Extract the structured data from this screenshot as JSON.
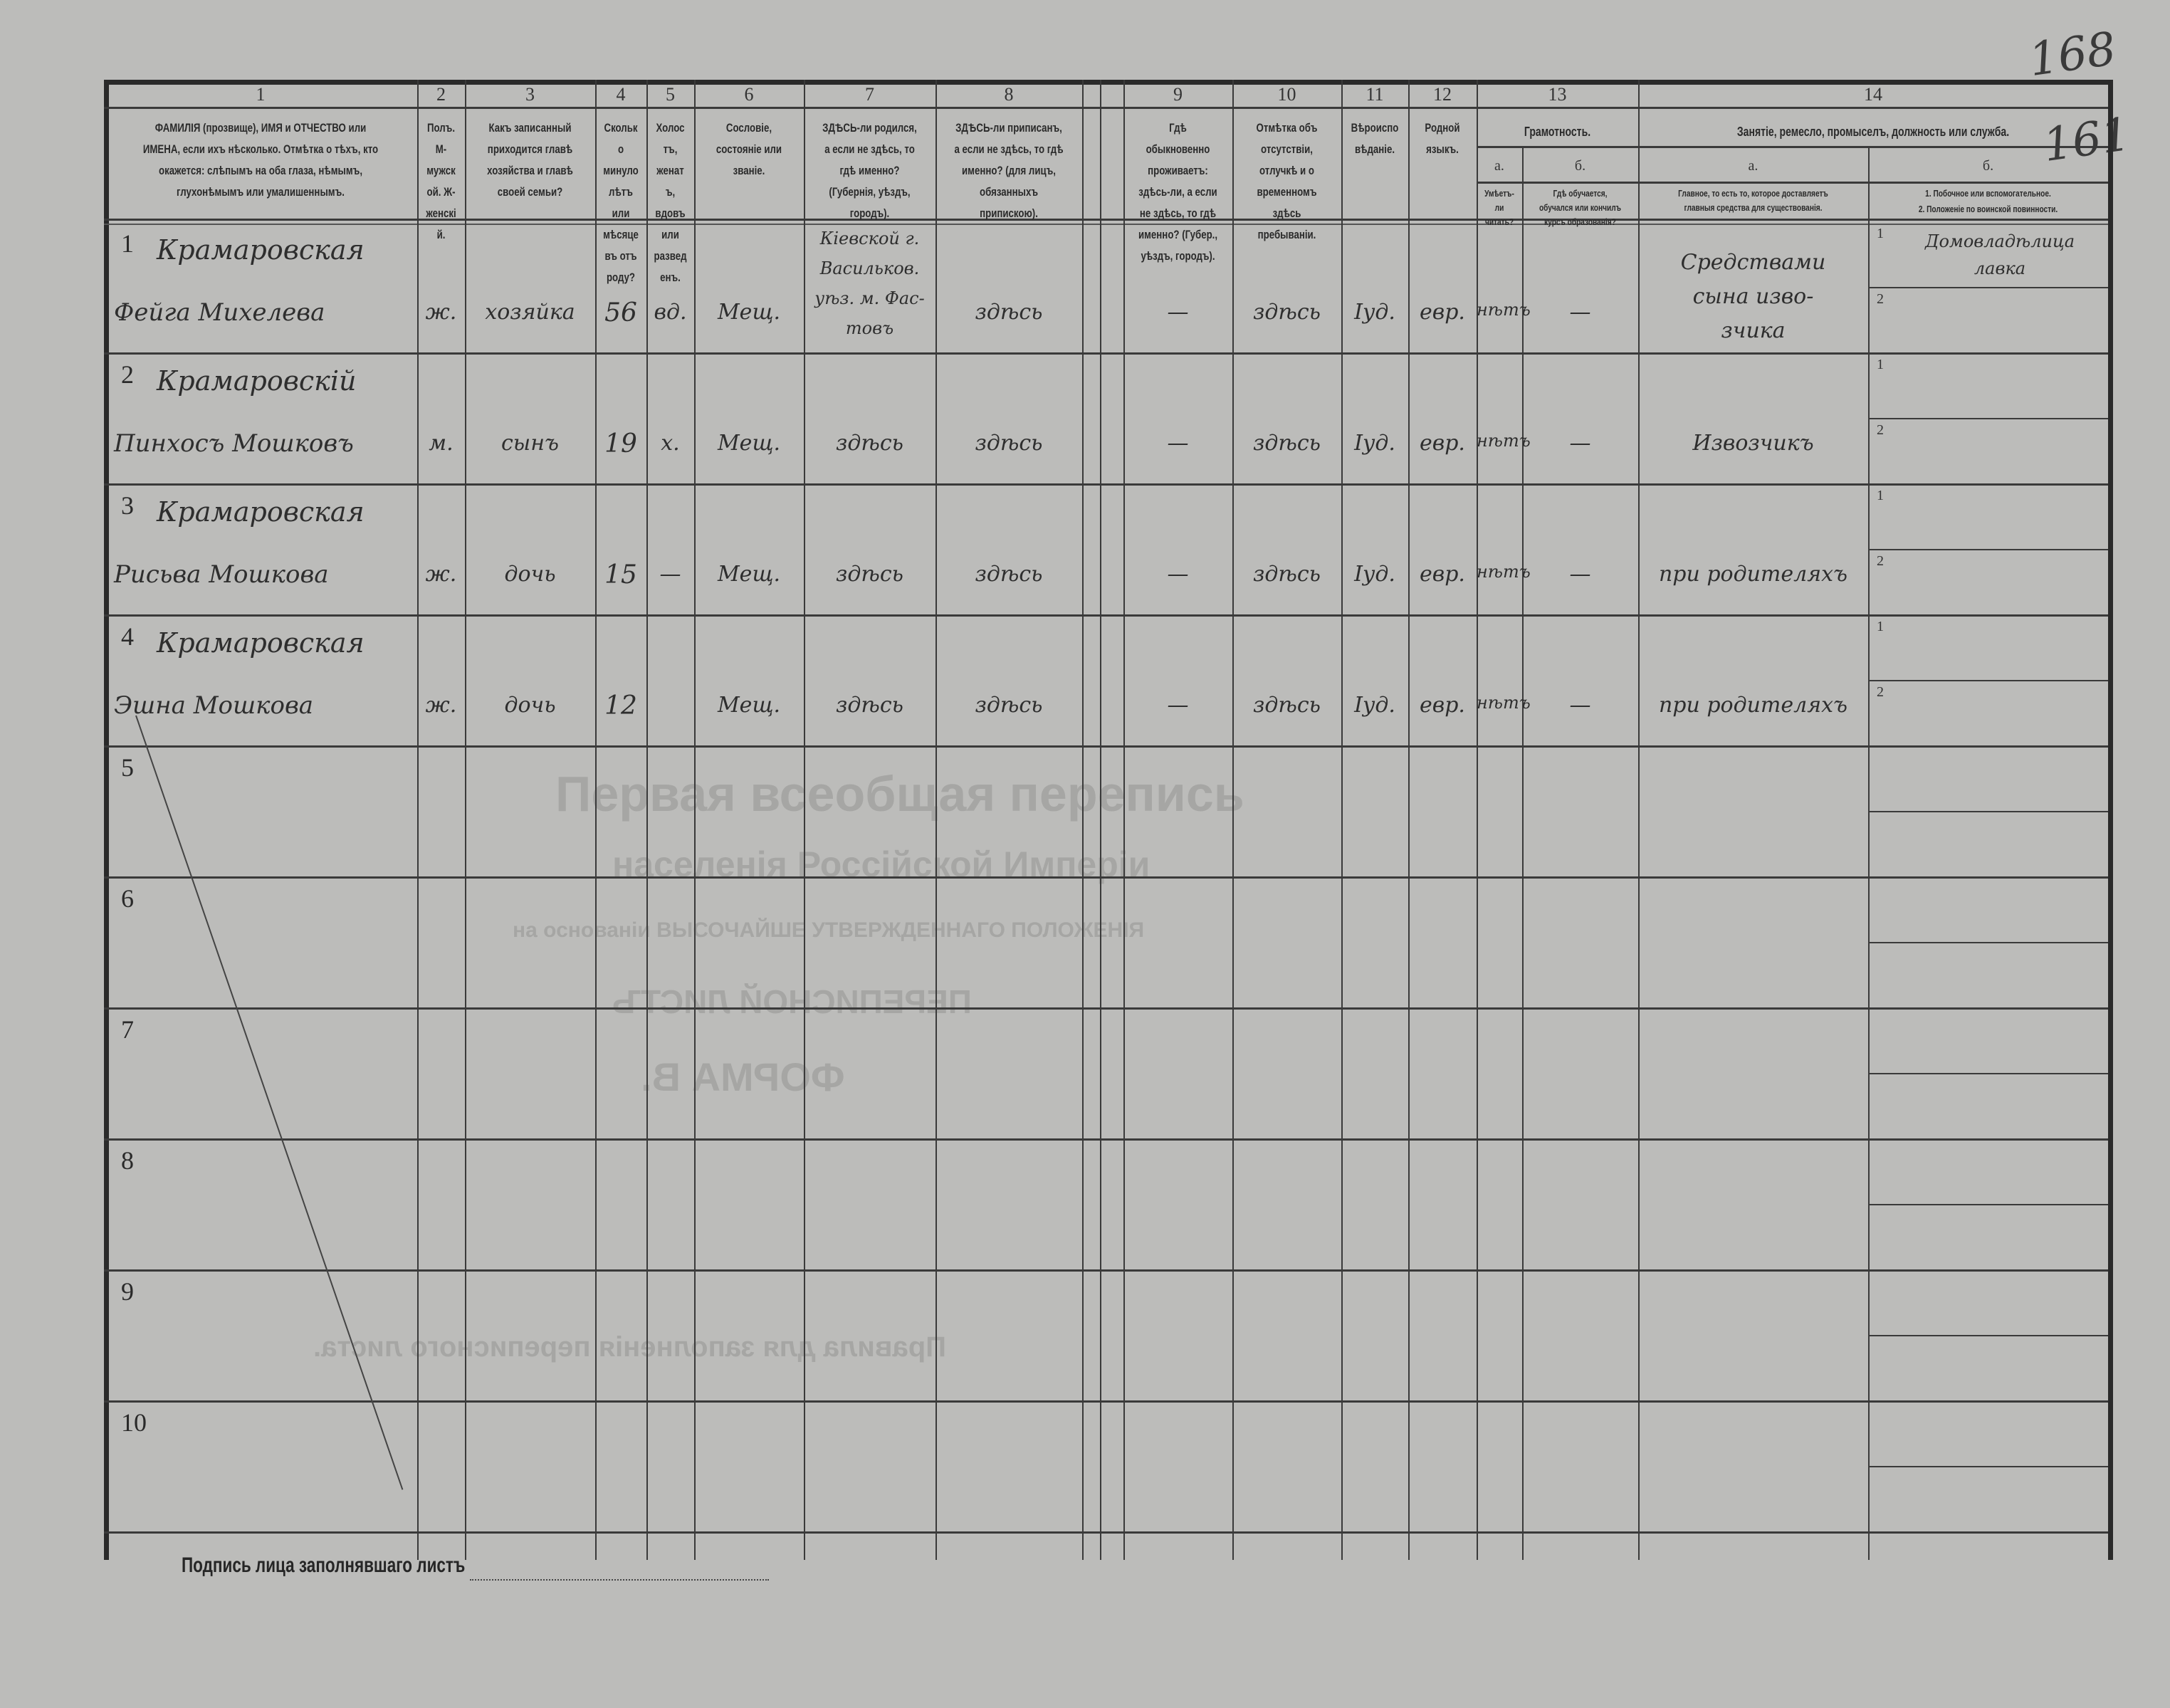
{
  "background_print": {
    "title": "Первая всеобщая перепись",
    "subtitle": "населенія Россійской Имперіи",
    "basis": "на основаніи ВЫСОЧАЙШЕ УТВЕРЖДЕННАГО ПОЛОЖЕНІЯ",
    "form_name": "ПЕРЕПИСНОЙ ЛИСТЪ",
    "form_letter": "ФОРМА В.",
    "rules_title": "Правила для заполненія переписного листа."
  },
  "page_numbers": {
    "top": "168",
    "bottom": "161"
  },
  "columns": [
    {
      "num": "1",
      "header": "ФАМИЛІЯ (прозвище), ИМЯ и ОТЧЕСТВО или ИМЕНА, если ихъ нѣсколько. Отмѣтка о тѣхъ, кто окажется: слѣпымъ на оба глаза, нѣмымъ, глухонѣмымъ или умалишеннымъ."
    },
    {
      "num": "2",
      "header": "Полъ. М-мужской. Ж-женскій."
    },
    {
      "num": "3",
      "header": "Какъ записанный приходится главѣ хозяйства и главѣ своей семьи?"
    },
    {
      "num": "4",
      "header": "Сколько минуло лѣтъ или мѣсяцевъ отъ роду?"
    },
    {
      "num": "5",
      "header": "Холостъ, женатъ, вдовъ или разведенъ."
    },
    {
      "num": "6",
      "header": "Сословіе, состояніе или званіе."
    },
    {
      "num": "7",
      "header": "ЗДѢСЬ-ли родился, а если не здѣсь, то гдѣ именно? (Губернія, уѣздъ, городъ)."
    },
    {
      "num": "8",
      "header": "ЗДѢСЬ-ли приписанъ, а если не здѣсь, то гдѣ именно? (для лицъ, обязанныхъ припискою)."
    },
    {
      "num": "9",
      "header": "Гдѣ обыкновенно проживаетъ: здѣсь-ли, а если не здѣсь, то гдѣ именно? (Губер., уѣздъ, городъ)."
    },
    {
      "num": "10",
      "header": "Отмѣтка объ отсутствіи, отлучкѣ и о временномъ здѣсь пребываніи."
    },
    {
      "num": "11",
      "header": "Вѣроисповѣданіе."
    },
    {
      "num": "12",
      "header": "Родной языкъ."
    },
    {
      "num": "13",
      "header": "Грамотность.",
      "sub": [
        {
          "letter": "а.",
          "header": "Умѣетъ-ли читать?"
        },
        {
          "letter": "б.",
          "header": "Гдѣ обучается, обучался или кончилъ курсъ образованія?"
        }
      ]
    },
    {
      "num": "14",
      "header": "Занятіе, ремесло, промыселъ, должность или служба.",
      "sub": [
        {
          "letter": "а.",
          "header": "Главное, то есть то, которое доставляетъ главныя средства для существованія."
        },
        {
          "letter": "б.",
          "header": "1. Побочное или вспомогательное.",
          "header2": "2. Положеніе по воинской повинности."
        }
      ]
    }
  ],
  "rows": [
    {
      "num": "1",
      "surname": "Крамаровская",
      "given": "Фейга Михелева",
      "sex": "ж.",
      "relation": "хозяйка",
      "age": "56",
      "marital": "вд.",
      "estate": "Мещ.",
      "birthplace": [
        "Кіевской г.",
        "Васильков.",
        "уѣз. м. Фас-",
        "товъ"
      ],
      "registered": "здѣсь",
      "residence": "—",
      "absence": "здѣсь",
      "religion": "Іуд.",
      "language": "евр.",
      "literate": "нѣтъ",
      "education": "—",
      "occupation_main": [
        "Средствами",
        "сына изво-",
        "зчика"
      ],
      "occupation_side": [
        "Домовладѣлица",
        "лавка"
      ],
      "sub1": "1",
      "sub2": "2"
    },
    {
      "num": "2",
      "surname": "Крамаровскій",
      "given": "Пинхосъ Мошковъ",
      "sex": "м.",
      "relation": "сынъ",
      "age": "19",
      "marital": "х.",
      "estate": "Мещ.",
      "birthplace": [
        "здѣсь"
      ],
      "registered": "здѣсь",
      "residence": "—",
      "absence": "здѣсь",
      "religion": "Іуд.",
      "language": "евр.",
      "literate": "нѣтъ",
      "education": "—",
      "occupation_main": [
        "Извозчикъ"
      ],
      "occupation_side": [],
      "sub1": "1",
      "sub2": "2"
    },
    {
      "num": "3",
      "surname": "Крамаровская",
      "given": "Рисьва Мошкова",
      "sex": "ж.",
      "relation": "дочь",
      "age": "15",
      "marital": "—",
      "estate": "Мещ.",
      "birthplace": [
        "здѣсь"
      ],
      "registered": "здѣсь",
      "residence": "—",
      "absence": "здѣсь",
      "religion": "Іуд.",
      "language": "евр.",
      "literate": "нѣтъ",
      "education": "—",
      "occupation_main": [
        "при родителяхъ"
      ],
      "occupation_side": [],
      "sub1": "1",
      "sub2": "2"
    },
    {
      "num": "4",
      "surname": "Крамаровская",
      "given": "Эшна Мошкова",
      "sex": "ж.",
      "relation": "дочь",
      "age": "12",
      "marital": "",
      "estate": "Мещ.",
      "birthplace": [
        "здѣсь"
      ],
      "registered": "здѣсь",
      "residence": "—",
      "absence": "здѣсь",
      "religion": "Іуд.",
      "language": "евр.",
      "literate": "нѣтъ",
      "education": "—",
      "occupation_main": [
        "при родителяхъ"
      ],
      "occupation_side": [],
      "sub1": "1",
      "sub2": "2"
    },
    {
      "num": "5"
    },
    {
      "num": "6"
    },
    {
      "num": "7"
    },
    {
      "num": "8"
    },
    {
      "num": "9"
    },
    {
      "num": "10"
    }
  ],
  "footer": {
    "signature_label": "Подпись лица заполнявшаго листъ"
  }
}
